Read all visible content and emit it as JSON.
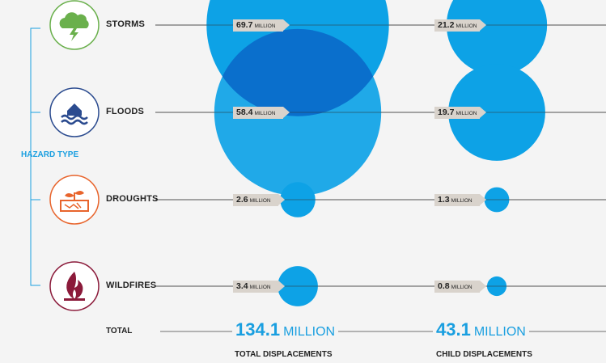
{
  "chart_data": {
    "type": "bubble",
    "axis_title": "HAZARD TYPE",
    "categories": [
      "STORMS",
      "FLOODS",
      "DROUGHTS",
      "WILDFIRES"
    ],
    "icons": [
      "storm-cloud-icon",
      "flood-house-icon",
      "drought-plant-icon",
      "wildfire-flame-icon"
    ],
    "icon_colors": [
      "#6ab04c",
      "#2b4b8f",
      "#e8642c",
      "#8b1a3a"
    ],
    "unit": "MILLION",
    "series": [
      {
        "name": "TOTAL DISPLACEMENTS",
        "values": [
          69.7,
          58.4,
          2.6,
          3.4
        ],
        "total": "134.1"
      },
      {
        "name": "CHILD DISPLACEMENTS",
        "values": [
          21.2,
          19.7,
          1.3,
          0.8
        ],
        "total": "43.1"
      }
    ],
    "total_label": "TOTAL",
    "colors": {
      "bubble": "#0da2e6",
      "overlap": "#0a6fcc",
      "accent": "#1a9fe0"
    }
  }
}
